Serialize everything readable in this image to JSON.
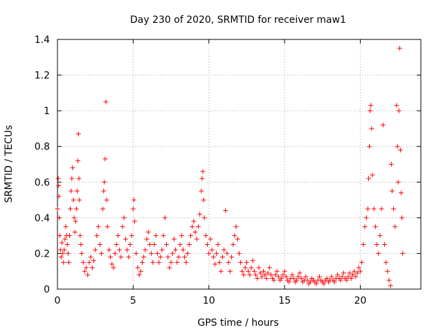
{
  "chart_data": {
    "type": "scatter",
    "title": "Day 230 of 2020, SRMTID for receiver maw1",
    "xlabel": "GPS time / hours",
    "ylabel": "SRMTID / TECUs",
    "xlim": [
      0,
      24
    ],
    "ylim": [
      0,
      1.4
    ],
    "xticks": [
      0,
      5,
      10,
      15,
      20
    ],
    "xtick_labels": [
      "0",
      "5",
      "10",
      "15",
      "20"
    ],
    "yticks": [
      0,
      0.2,
      0.4,
      0.6,
      0.8,
      1.0,
      1.2,
      1.4
    ],
    "ytick_labels": [
      "0",
      "0.2",
      "0.4",
      "0.6",
      "0.8",
      "1",
      "1.2",
      "1.4"
    ],
    "grid": true,
    "marker": "+",
    "color": "#ff0000",
    "series": [
      {
        "name": "SRMTID",
        "points": [
          [
            0.0,
            0.45
          ],
          [
            0.05,
            0.62
          ],
          [
            0.08,
            0.58
          ],
          [
            0.1,
            0.52
          ],
          [
            0.12,
            0.4
          ],
          [
            0.15,
            0.3
          ],
          [
            0.2,
            0.22
          ],
          [
            0.25,
            0.18
          ],
          [
            0.3,
            0.26
          ],
          [
            0.35,
            0.2
          ],
          [
            0.4,
            0.15
          ],
          [
            0.45,
            0.22
          ],
          [
            0.5,
            0.28
          ],
          [
            0.55,
            0.35
          ],
          [
            0.6,
            0.3
          ],
          [
            0.65,
            0.25
          ],
          [
            0.7,
            0.2
          ],
          [
            0.75,
            0.15
          ],
          [
            0.8,
            0.3
          ],
          [
            0.85,
            0.45
          ],
          [
            0.9,
            0.55
          ],
          [
            0.95,
            0.62
          ],
          [
            1.0,
            0.68
          ],
          [
            1.05,
            0.5
          ],
          [
            1.1,
            0.4
          ],
          [
            1.15,
            0.32
          ],
          [
            1.2,
            0.38
          ],
          [
            1.25,
            0.45
          ],
          [
            1.3,
            0.55
          ],
          [
            1.35,
            0.72
          ],
          [
            1.38,
            0.87
          ],
          [
            1.42,
            0.62
          ],
          [
            1.45,
            0.5
          ],
          [
            1.5,
            0.3
          ],
          [
            1.55,
            0.25
          ],
          [
            1.6,
            0.2
          ],
          [
            1.7,
            0.15
          ],
          [
            1.8,
            0.1
          ],
          [
            1.9,
            0.12
          ],
          [
            2.0,
            0.08
          ],
          [
            2.1,
            0.15
          ],
          [
            2.2,
            0.18
          ],
          [
            2.3,
            0.12
          ],
          [
            2.4,
            0.16
          ],
          [
            2.5,
            0.22
          ],
          [
            2.6,
            0.3
          ],
          [
            2.7,
            0.35
          ],
          [
            2.8,
            0.25
          ],
          [
            2.9,
            0.2
          ],
          [
            3.0,
            0.45
          ],
          [
            3.05,
            0.55
          ],
          [
            3.1,
            0.6
          ],
          [
            3.15,
            0.73
          ],
          [
            3.2,
            1.05
          ],
          [
            3.25,
            0.5
          ],
          [
            3.3,
            0.35
          ],
          [
            3.4,
            0.22
          ],
          [
            3.5,
            0.18
          ],
          [
            3.6,
            0.14
          ],
          [
            3.7,
            0.12
          ],
          [
            3.8,
            0.2
          ],
          [
            3.9,
            0.25
          ],
          [
            4.0,
            0.3
          ],
          [
            4.1,
            0.22
          ],
          [
            4.2,
            0.18
          ],
          [
            4.3,
            0.35
          ],
          [
            4.4,
            0.4
          ],
          [
            4.5,
            0.28
          ],
          [
            4.6,
            0.22
          ],
          [
            4.7,
            0.18
          ],
          [
            4.8,
            0.25
          ],
          [
            4.9,
            0.3
          ],
          [
            5.0,
            0.45
          ],
          [
            5.05,
            0.5
          ],
          [
            5.1,
            0.38
          ],
          [
            5.2,
            0.2
          ],
          [
            5.3,
            0.12
          ],
          [
            5.4,
            0.08
          ],
          [
            5.5,
            0.1
          ],
          [
            5.6,
            0.15
          ],
          [
            5.7,
            0.18
          ],
          [
            5.8,
            0.22
          ],
          [
            5.9,
            0.28
          ],
          [
            6.0,
            0.32
          ],
          [
            6.1,
            0.25
          ],
          [
            6.2,
            0.2
          ],
          [
            6.3,
            0.15
          ],
          [
            6.4,
            0.25
          ],
          [
            6.5,
            0.3
          ],
          [
            6.6,
            0.2
          ],
          [
            6.7,
            0.15
          ],
          [
            6.8,
            0.18
          ],
          [
            6.9,
            0.22
          ],
          [
            7.0,
            0.3
          ],
          [
            7.1,
            0.4
          ],
          [
            7.2,
            0.25
          ],
          [
            7.3,
            0.18
          ],
          [
            7.4,
            0.12
          ],
          [
            7.5,
            0.15
          ],
          [
            7.6,
            0.2
          ],
          [
            7.7,
            0.28
          ],
          [
            7.8,
            0.22
          ],
          [
            7.9,
            0.15
          ],
          [
            8.0,
            0.18
          ],
          [
            8.1,
            0.25
          ],
          [
            8.2,
            0.3
          ],
          [
            8.3,
            0.22
          ],
          [
            8.4,
            0.18
          ],
          [
            8.5,
            0.15
          ],
          [
            8.6,
            0.2
          ],
          [
            8.7,
            0.25
          ],
          [
            8.8,
            0.3
          ],
          [
            8.9,
            0.35
          ],
          [
            9.0,
            0.38
          ],
          [
            9.1,
            0.32
          ],
          [
            9.2,
            0.28
          ],
          [
            9.3,
            0.35
          ],
          [
            9.4,
            0.42
          ],
          [
            9.5,
            0.55
          ],
          [
            9.55,
            0.62
          ],
          [
            9.6,
            0.66
          ],
          [
            9.65,
            0.5
          ],
          [
            9.7,
            0.4
          ],
          [
            9.8,
            0.3
          ],
          [
            9.9,
            0.25
          ],
          [
            10.0,
            0.2
          ],
          [
            10.1,
            0.28
          ],
          [
            10.2,
            0.22
          ],
          [
            10.3,
            0.18
          ],
          [
            10.4,
            0.14
          ],
          [
            10.5,
            0.2
          ],
          [
            10.6,
            0.25
          ],
          [
            10.7,
            0.15
          ],
          [
            10.8,
            0.1
          ],
          [
            10.9,
            0.18
          ],
          [
            11.0,
            0.22
          ],
          [
            11.1,
            0.44
          ],
          [
            11.2,
            0.2
          ],
          [
            11.3,
            0.15
          ],
          [
            11.4,
            0.1
          ],
          [
            11.5,
            0.18
          ],
          [
            11.6,
            0.25
          ],
          [
            11.7,
            0.3
          ],
          [
            11.8,
            0.35
          ],
          [
            11.9,
            0.28
          ],
          [
            12.0,
            0.2
          ],
          [
            12.1,
            0.15
          ],
          [
            12.2,
            0.1
          ],
          [
            12.3,
            0.08
          ],
          [
            12.4,
            0.12
          ],
          [
            12.5,
            0.15
          ],
          [
            12.6,
            0.1
          ],
          [
            12.7,
            0.08
          ],
          [
            12.8,
            0.12
          ],
          [
            12.9,
            0.16
          ],
          [
            13.0,
            0.1
          ],
          [
            13.1,
            0.08
          ],
          [
            13.2,
            0.06
          ],
          [
            13.3,
            0.12
          ],
          [
            13.4,
            0.09
          ],
          [
            13.5,
            0.07
          ],
          [
            13.6,
            0.1
          ],
          [
            13.7,
            0.08
          ],
          [
            13.8,
            0.06
          ],
          [
            13.9,
            0.09
          ],
          [
            14.0,
            0.12
          ],
          [
            14.1,
            0.08
          ],
          [
            14.2,
            0.06
          ],
          [
            14.3,
            0.05
          ],
          [
            14.4,
            0.08
          ],
          [
            14.5,
            0.1
          ],
          [
            14.6,
            0.07
          ],
          [
            14.7,
            0.05
          ],
          [
            14.8,
            0.06
          ],
          [
            14.9,
            0.08
          ],
          [
            15.0,
            0.1
          ],
          [
            15.1,
            0.07
          ],
          [
            15.2,
            0.05
          ],
          [
            15.3,
            0.04
          ],
          [
            15.4,
            0.06
          ],
          [
            15.5,
            0.08
          ],
          [
            15.6,
            0.06
          ],
          [
            15.7,
            0.04
          ],
          [
            15.8,
            0.05
          ],
          [
            15.9,
            0.07
          ],
          [
            16.0,
            0.09
          ],
          [
            16.1,
            0.06
          ],
          [
            16.2,
            0.04
          ],
          [
            16.3,
            0.05
          ],
          [
            16.4,
            0.07
          ],
          [
            16.5,
            0.05
          ],
          [
            16.6,
            0.03
          ],
          [
            16.7,
            0.04
          ],
          [
            16.8,
            0.06
          ],
          [
            16.9,
            0.05
          ],
          [
            17.0,
            0.04
          ],
          [
            17.1,
            0.03
          ],
          [
            17.2,
            0.05
          ],
          [
            17.3,
            0.07
          ],
          [
            17.4,
            0.05
          ],
          [
            17.5,
            0.04
          ],
          [
            17.6,
            0.03
          ],
          [
            17.7,
            0.05
          ],
          [
            17.8,
            0.06
          ],
          [
            17.9,
            0.04
          ],
          [
            18.0,
            0.05
          ],
          [
            18.1,
            0.07
          ],
          [
            18.2,
            0.05
          ],
          [
            18.3,
            0.04
          ],
          [
            18.4,
            0.06
          ],
          [
            18.5,
            0.08
          ],
          [
            18.6,
            0.06
          ],
          [
            18.7,
            0.05
          ],
          [
            18.8,
            0.07
          ],
          [
            18.9,
            0.09
          ],
          [
            19.0,
            0.06
          ],
          [
            19.1,
            0.05
          ],
          [
            19.2,
            0.07
          ],
          [
            19.3,
            0.09
          ],
          [
            19.4,
            0.06
          ],
          [
            19.5,
            0.08
          ],
          [
            19.6,
            0.1
          ],
          [
            19.7,
            0.07
          ],
          [
            19.8,
            0.09
          ],
          [
            19.9,
            0.12
          ],
          [
            20.0,
            0.1
          ],
          [
            20.1,
            0.15
          ],
          [
            20.2,
            0.25
          ],
          [
            20.3,
            0.35
          ],
          [
            20.4,
            0.4
          ],
          [
            20.5,
            0.45
          ],
          [
            20.55,
            0.62
          ],
          [
            20.6,
            0.8
          ],
          [
            20.65,
            1.0
          ],
          [
            20.7,
            1.03
          ],
          [
            20.75,
            0.9
          ],
          [
            20.8,
            0.64
          ],
          [
            20.9,
            0.45
          ],
          [
            21.0,
            0.35
          ],
          [
            21.1,
            0.25
          ],
          [
            21.2,
            0.2
          ],
          [
            21.3,
            0.3
          ],
          [
            21.4,
            0.45
          ],
          [
            21.5,
            0.92
          ],
          [
            21.6,
            0.25
          ],
          [
            21.7,
            0.15
          ],
          [
            21.8,
            0.1
          ],
          [
            21.9,
            0.05
          ],
          [
            22.0,
            0.02
          ],
          [
            22.05,
            0.7
          ],
          [
            22.1,
            0.55
          ],
          [
            22.2,
            0.45
          ],
          [
            22.3,
            0.35
          ],
          [
            22.4,
            1.03
          ],
          [
            22.45,
            0.8
          ],
          [
            22.5,
            0.6
          ],
          [
            22.55,
            1.0
          ],
          [
            22.6,
            1.35
          ],
          [
            22.65,
            0.78
          ],
          [
            22.7,
            0.54
          ],
          [
            22.75,
            0.4
          ],
          [
            22.8,
            0.2
          ]
        ]
      }
    ]
  }
}
